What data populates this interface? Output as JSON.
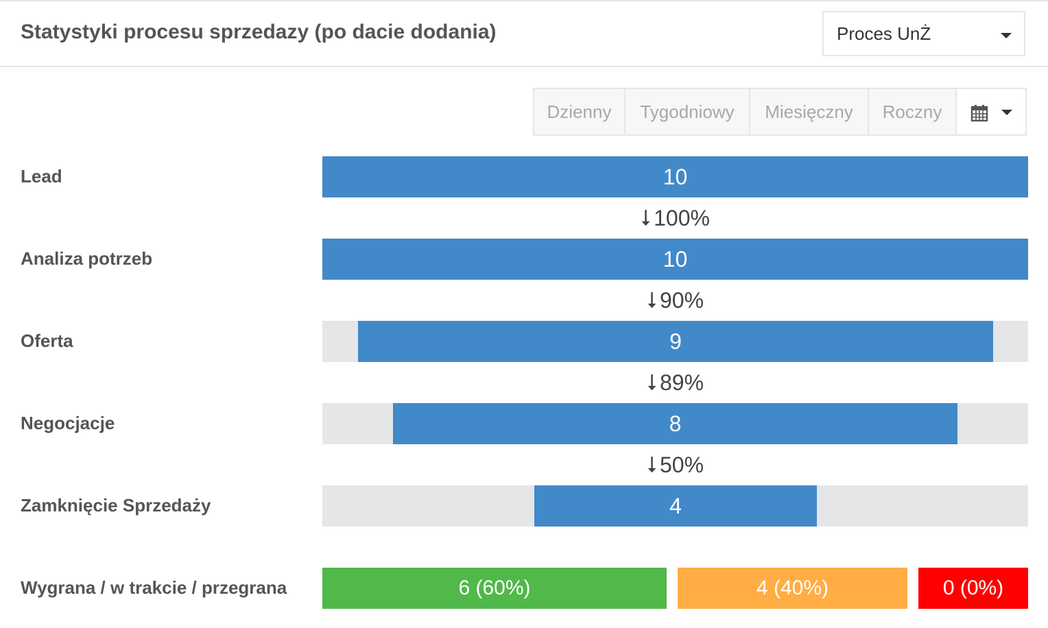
{
  "header": {
    "title": "Statystyki procesu sprzedazy (po dacie dodania)",
    "process_select": {
      "value": "Proces UnŻ",
      "caret_icon": "chevron-down-icon"
    }
  },
  "period_buttons": [
    {
      "label": "Dzienny"
    },
    {
      "label": "Tygodniowy"
    },
    {
      "label": "Miesięczny"
    },
    {
      "label": "Roczny"
    }
  ],
  "date_picker": {
    "icon": "calendar-icon",
    "caret_icon": "chevron-down-icon"
  },
  "funnel": {
    "bar_color": "#4289c9",
    "track_color": "#e5e6e8",
    "max_value": 10,
    "stages": [
      {
        "label": "Lead",
        "value": "10"
      },
      {
        "label": "Analiza potrzeb",
        "value": "10"
      },
      {
        "label": "Oferta",
        "value": "9"
      },
      {
        "label": "Negocjacje",
        "value": "8"
      },
      {
        "label": "Zamknięcie Sprzedaży",
        "value": "4"
      }
    ],
    "conversions": [
      {
        "arrow": "⭣",
        "value": "100%"
      },
      {
        "arrow": "⭣",
        "value": "90%"
      },
      {
        "arrow": "⭣",
        "value": "89%"
      },
      {
        "arrow": "⭣",
        "value": "50%"
      }
    ]
  },
  "outcome": {
    "label": "Wygrana / w trakcie / przegrana",
    "segments": [
      {
        "name": "won",
        "text": "6 (60%)",
        "color": "#51b84a"
      },
      {
        "name": "in-progress",
        "text": "4 (40%)",
        "color": "#ffad44"
      },
      {
        "name": "lost",
        "text": "0 (0%)",
        "color": "#ff0000"
      }
    ]
  }
}
